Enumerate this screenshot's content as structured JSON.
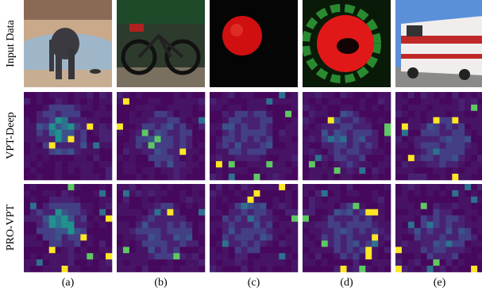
{
  "rows": [
    "Input Data",
    "VPT-Deep",
    "PRO-VPT"
  ],
  "columns": [
    "(a)",
    "(b)",
    "(c)",
    "(d)",
    "(e)"
  ]
}
